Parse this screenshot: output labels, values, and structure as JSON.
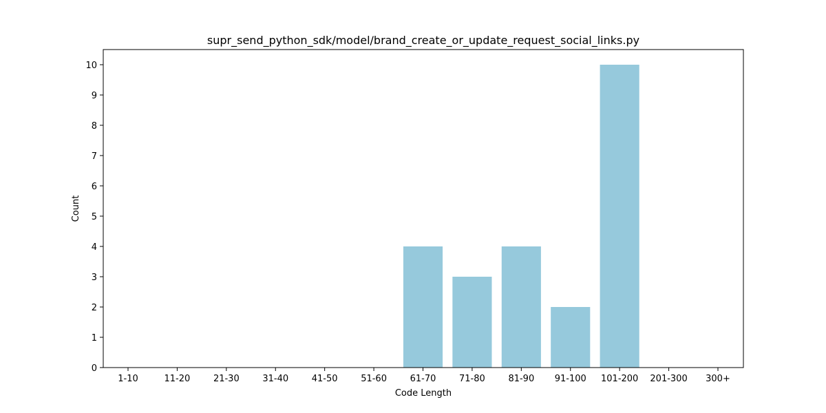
{
  "chart_data": {
    "type": "bar",
    "title": "supr_send_python_sdk/model/brand_create_or_update_request_social_links.py",
    "xlabel": "Code Length",
    "ylabel": "Count",
    "categories": [
      "1-10",
      "11-20",
      "21-30",
      "31-40",
      "41-50",
      "51-60",
      "61-70",
      "71-80",
      "81-90",
      "91-100",
      "101-200",
      "201-300",
      "300+"
    ],
    "values": [
      0,
      0,
      0,
      0,
      0,
      0,
      4,
      3,
      4,
      2,
      10,
      0,
      0
    ],
    "ylim": [
      0,
      10.5
    ],
    "yticks": [
      "0",
      "1",
      "2",
      "3",
      "4",
      "5",
      "6",
      "7",
      "8",
      "9",
      "10"
    ],
    "grid": false,
    "legend": "none",
    "colors": {
      "bar": "#96c9dc",
      "axis": "#000000"
    }
  }
}
